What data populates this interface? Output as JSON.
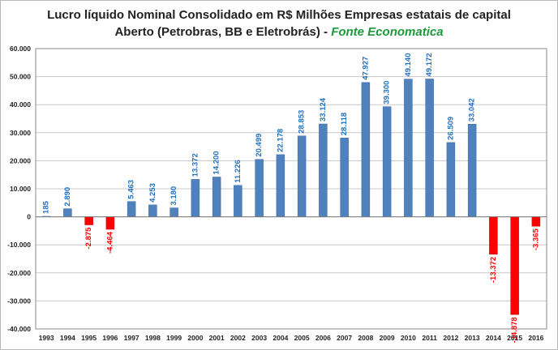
{
  "title": {
    "line1": "Lucro líquido Nominal Consolidado em R$ Milhões Empresas estatais de capital",
    "line2": "Aberto (Petrobras, BB e Eletrobrás) -",
    "source": "Fonte Economatica"
  },
  "colors": {
    "positive": "#4f81bd",
    "negative": "#ff0000",
    "label_positive": "#1f6fc0",
    "label_negative": "#ff0000",
    "grid": "#c8c8c8"
  },
  "chart_data": {
    "type": "bar",
    "title": "Lucro líquido Nominal Consolidado em R$ Milhões Empresas estatais de capital Aberto (Petrobras, BB e Eletrobrás) - Fonte Economatica",
    "xlabel": "",
    "ylabel": "",
    "ylim": [
      -40000,
      60000
    ],
    "yticks": [
      60000,
      50000,
      40000,
      30000,
      20000,
      10000,
      0,
      -10000,
      -20000,
      -30000,
      -40000
    ],
    "ytick_labels": [
      "60.000",
      "50.000",
      "40.000",
      "30.000",
      "20.000",
      "10.000",
      "0",
      "-10.000",
      "-20.000",
      "-30.000",
      "-40.000"
    ],
    "grid": true,
    "categories": [
      "1993",
      "1994",
      "1995",
      "1996",
      "1997",
      "1998",
      "1999",
      "2000",
      "2001",
      "2002",
      "2003",
      "2004",
      "2005",
      "2006",
      "2007",
      "2008",
      "2009",
      "2010",
      "2011",
      "2012",
      "2013",
      "2014",
      "2015",
      "2016"
    ],
    "values": [
      185,
      2890,
      -2875,
      -4464,
      5463,
      4253,
      3180,
      13372,
      14200,
      11226,
      20499,
      22178,
      28853,
      33124,
      28118,
      47927,
      39300,
      49140,
      49172,
      26509,
      33042,
      -13372,
      -34878,
      -3365
    ],
    "labels": [
      "185",
      "2.890",
      "-2.875",
      "-4.464",
      "5.463",
      "4.253",
      "3.180",
      "13.372",
      "14.200",
      "11.226",
      "20.499",
      "22.178",
      "28.853",
      "33.124",
      "28.118",
      "47.927",
      "39.300",
      "49.140",
      "49.172",
      "26.509",
      "33.042",
      "-13.372",
      "-34.878",
      "-3.365"
    ]
  }
}
